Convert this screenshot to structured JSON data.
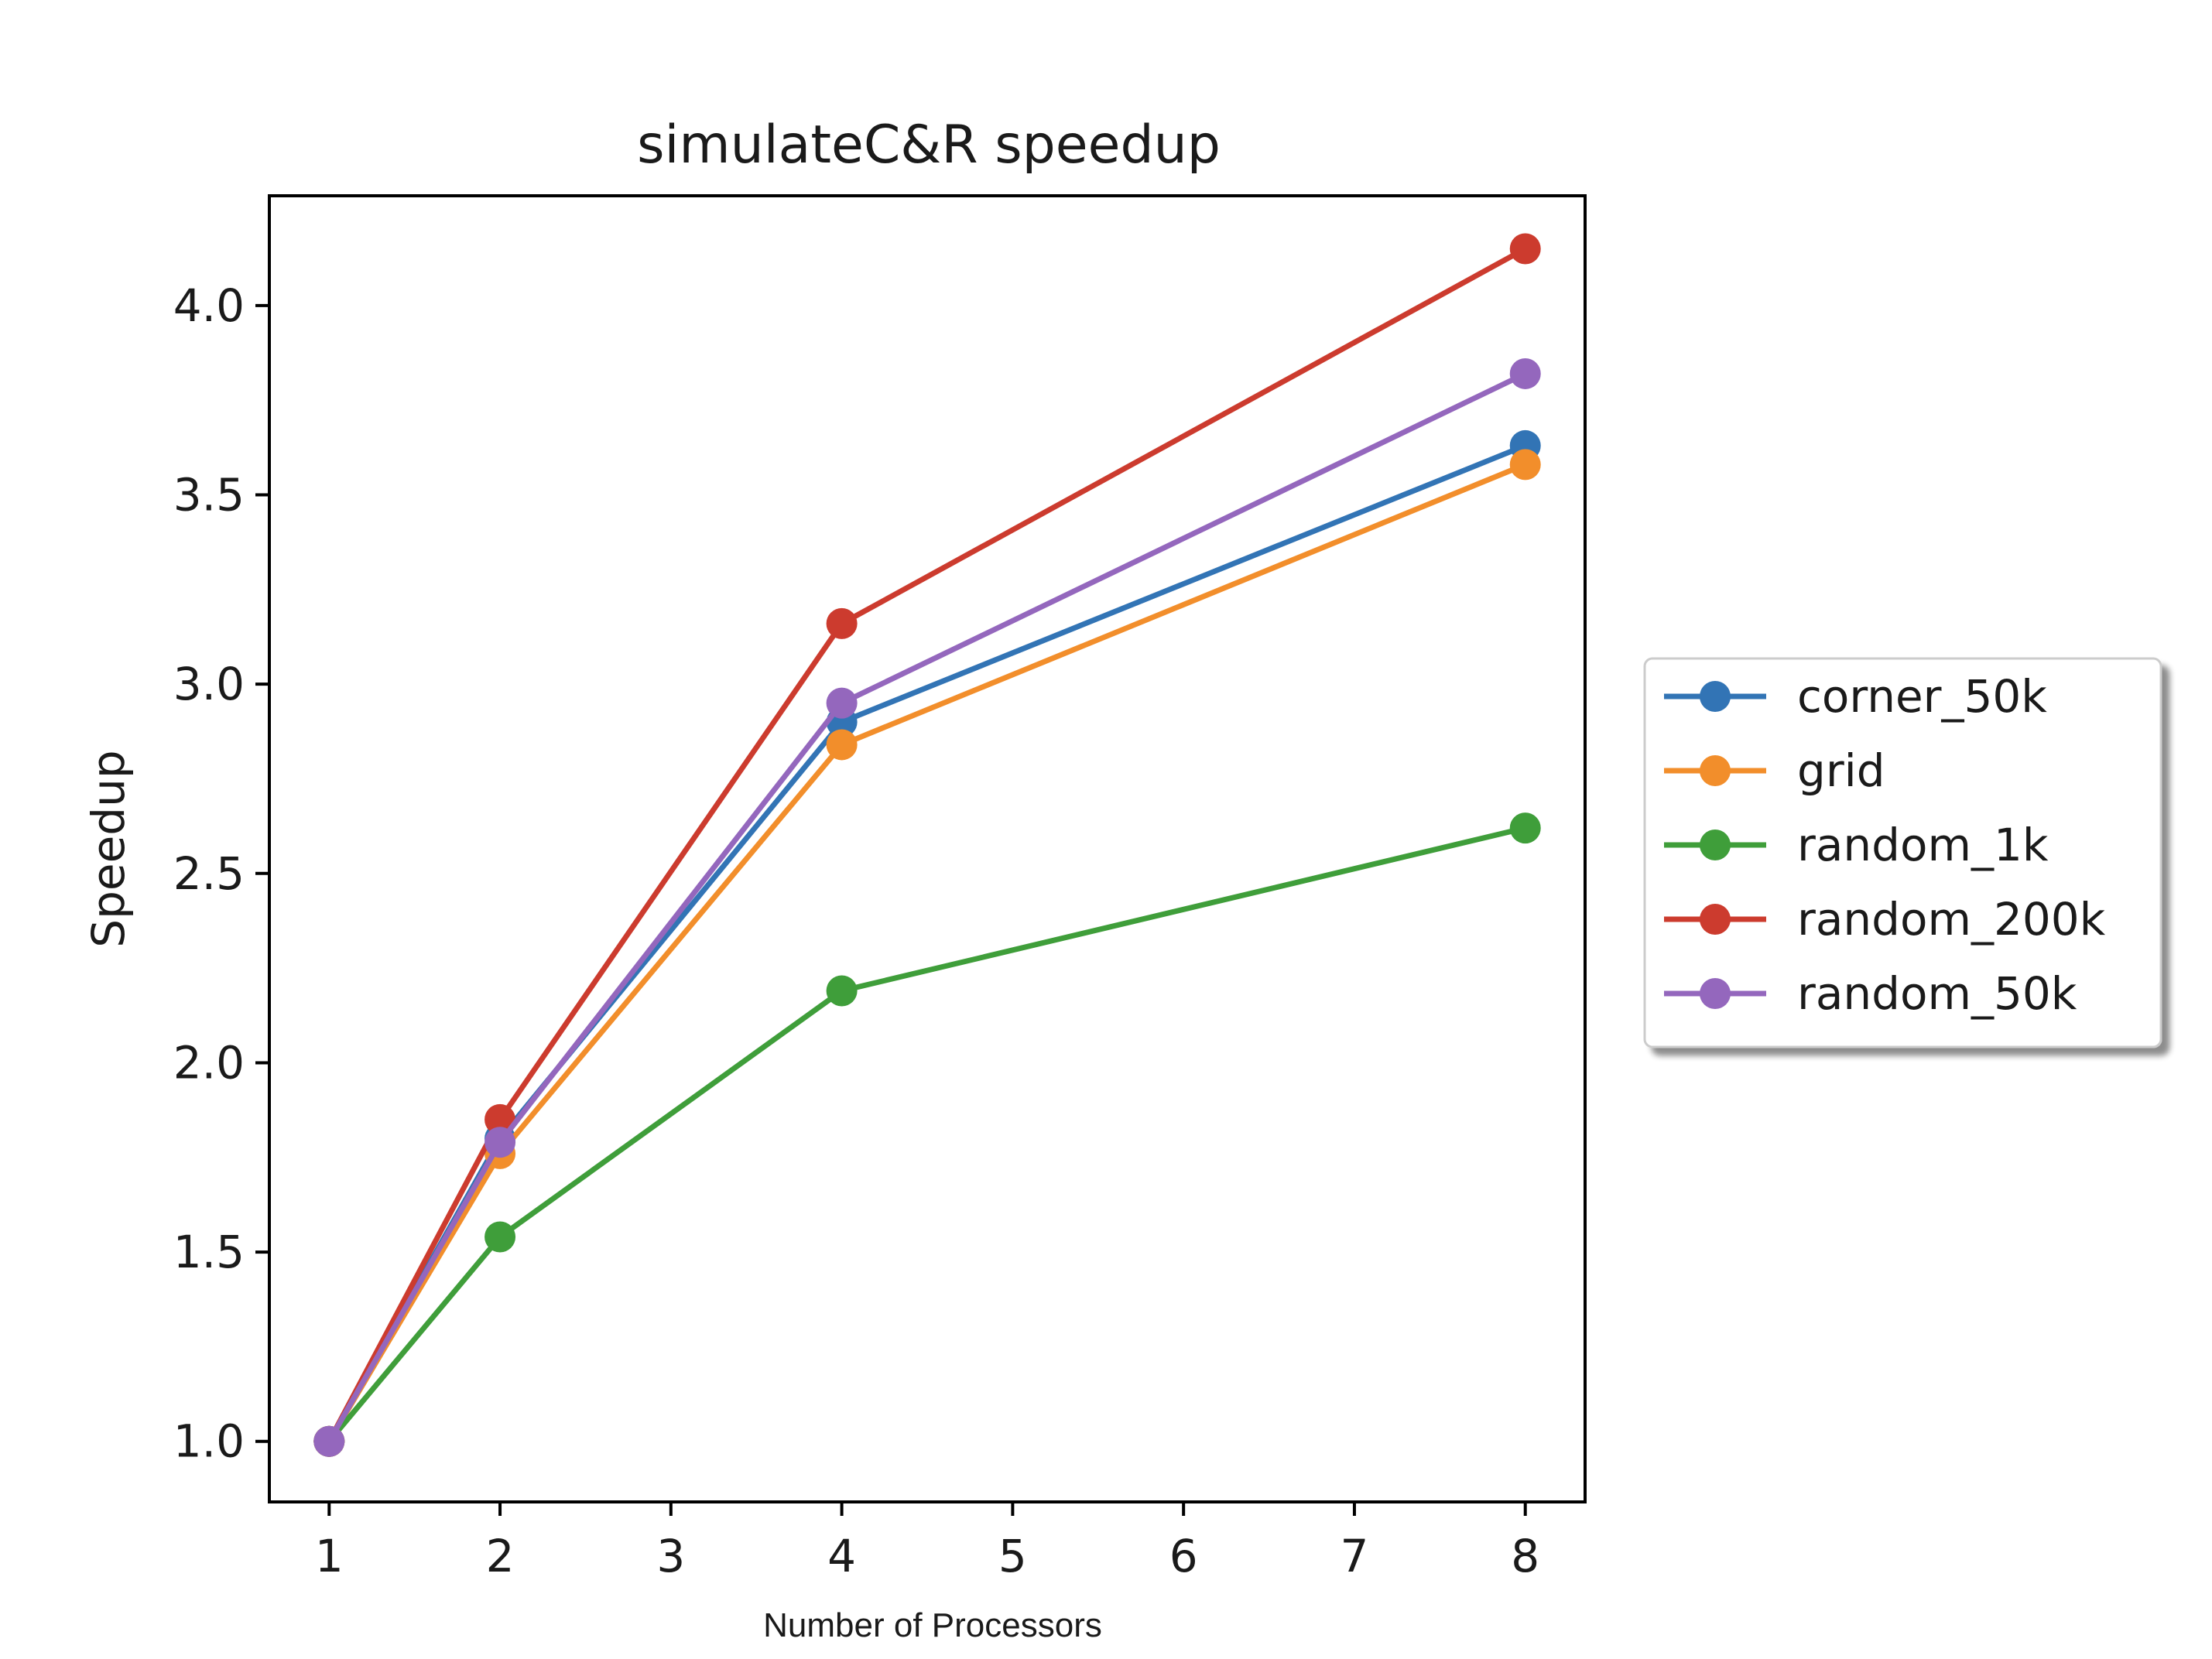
{
  "chart_data": {
    "type": "line",
    "title": "simulateC&R speedup",
    "xlabel": "Number of Processors",
    "ylabel": "Speedup",
    "x": [
      1,
      2,
      4,
      8
    ],
    "xlim": [
      0.65,
      8.35
    ],
    "ylim": [
      0.84,
      4.29
    ],
    "xticks": [
      1,
      2,
      3,
      4,
      5,
      6,
      7,
      8
    ],
    "yticks": [
      "1.0",
      "1.5",
      "2.0",
      "2.5",
      "3.0",
      "3.5",
      "4.0"
    ],
    "grid": false,
    "legend_position": "outside-right",
    "series": [
      {
        "name": "corner_50k",
        "color": "#3274b5",
        "values": [
          1.0,
          1.8,
          2.9,
          3.63
        ]
      },
      {
        "name": "grid",
        "color": "#f28e2b",
        "values": [
          1.0,
          1.76,
          2.84,
          3.58
        ]
      },
      {
        "name": "random_1k",
        "color": "#3f9e3a",
        "values": [
          1.0,
          1.54,
          2.19,
          2.62
        ]
      },
      {
        "name": "random_200k",
        "color": "#cc3b2e",
        "values": [
          1.0,
          1.85,
          3.16,
          4.15
        ]
      },
      {
        "name": "random_50k",
        "color": "#9467bd",
        "values": [
          1.0,
          1.79,
          2.95,
          3.82
        ]
      }
    ]
  }
}
